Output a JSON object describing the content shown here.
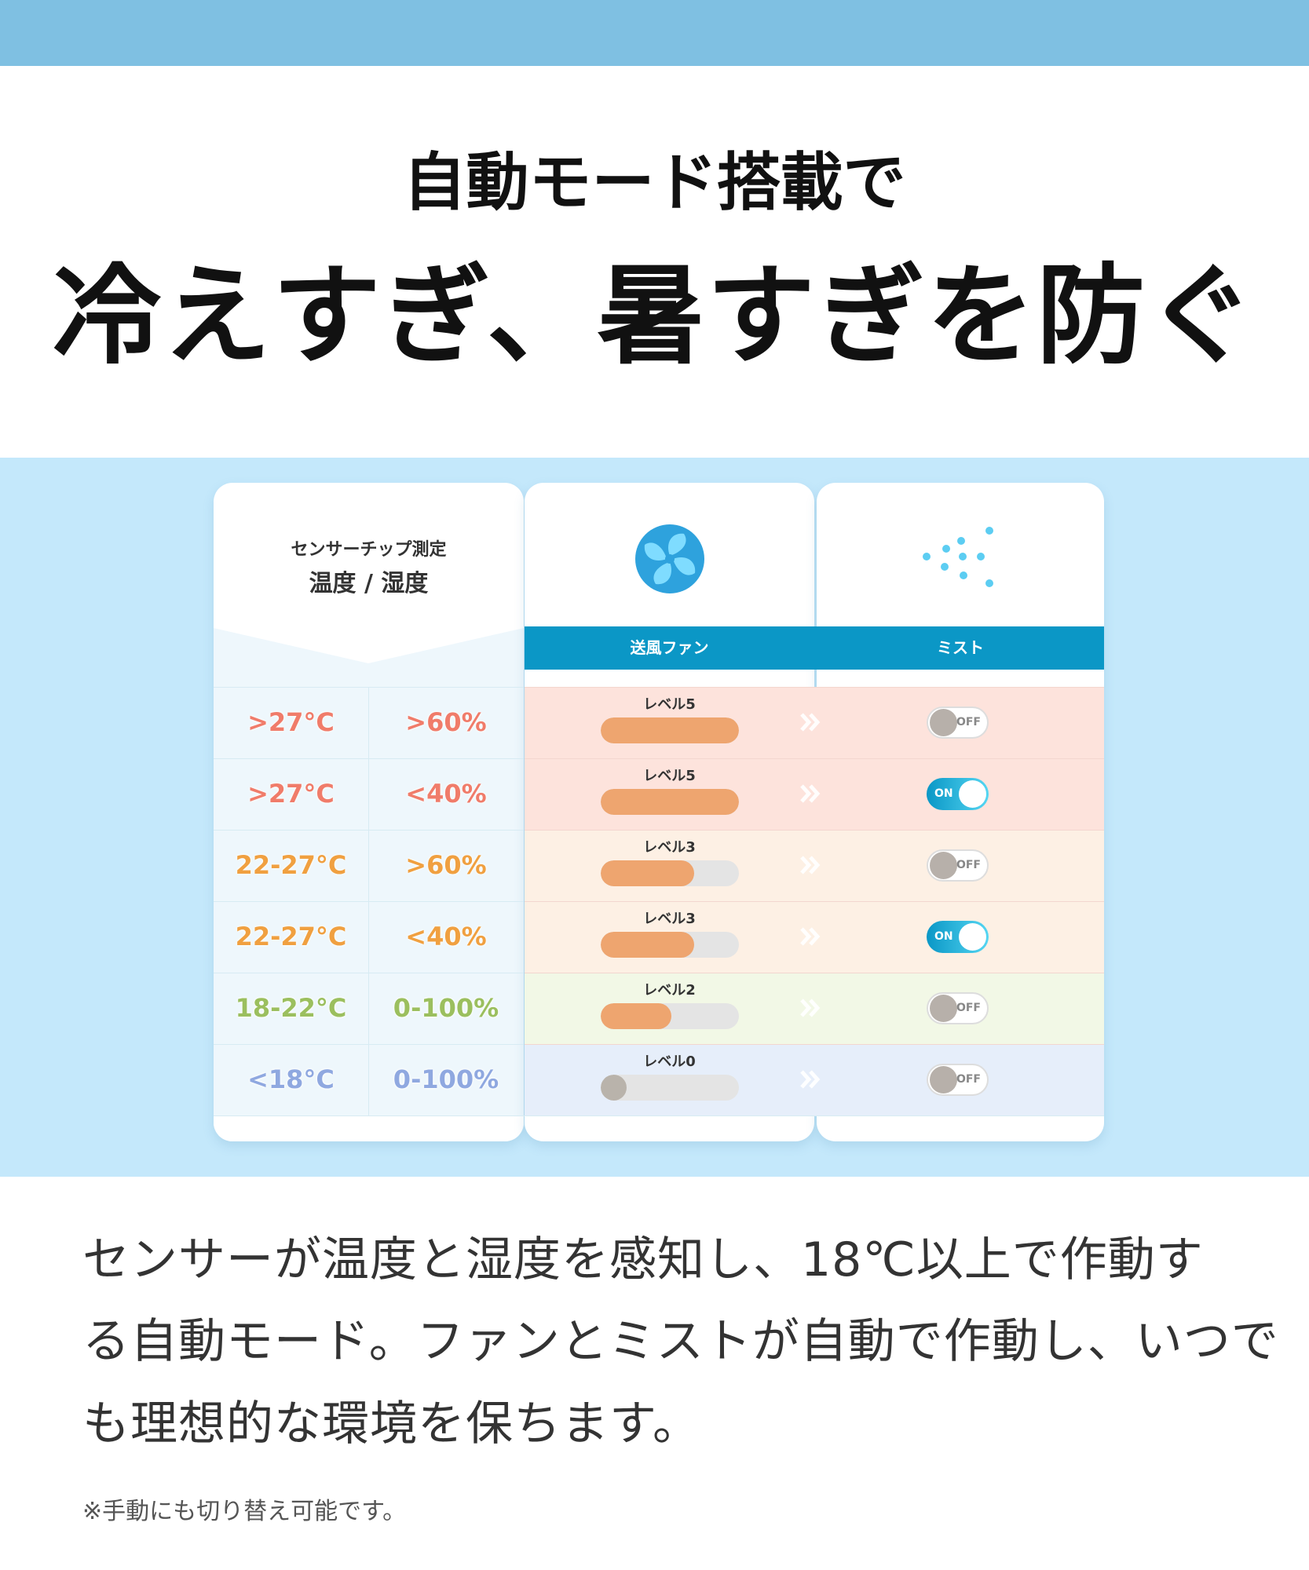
{
  "header": {
    "line1": "自動モード搭載で",
    "line2": "冷えすぎ、暑すぎを防ぐ"
  },
  "table": {
    "sensor_label": "センサーチップ測定",
    "sensor_title": "温度 / 湿度",
    "fan_header": "送風ファン",
    "mist_header": "ミスト",
    "rows": [
      {
        "temperature": ">27°C",
        "humidity": ">60%",
        "fan": {
          "label": "レベル5",
          "level": 5
        },
        "mist": {
          "label": "OFF",
          "on": false
        }
      },
      {
        "temperature": ">27°C",
        "humidity": "<40%",
        "fan": {
          "label": "レベル5",
          "level": 5
        },
        "mist": {
          "label": "ON",
          "on": true
        }
      },
      {
        "temperature": "22-27°C",
        "humidity": ">60%",
        "fan": {
          "label": "レベル3",
          "level": 3
        },
        "mist": {
          "label": "OFF",
          "on": false
        }
      },
      {
        "temperature": "22-27°C",
        "humidity": "<40%",
        "fan": {
          "label": "レベル3",
          "level": 3
        },
        "mist": {
          "label": "ON",
          "on": true
        }
      },
      {
        "temperature": "18-22°C",
        "humidity": "0-100%",
        "fan": {
          "label": "レベル2",
          "level": 2
        },
        "mist": {
          "label": "OFF",
          "on": false
        }
      },
      {
        "temperature": "<18°C",
        "humidity": "0-100%",
        "fan": {
          "label": "レベル0",
          "level": 0
        },
        "mist": {
          "label": "OFF",
          "on": false
        }
      }
    ]
  },
  "description": {
    "lines": [
      "センサーが温度と湿度を感知し、18℃以上で作動す",
      "る自動モード。ファンとミストが自動で作動し、いつで",
      "も理想的な環境を保ちます。"
    ]
  },
  "note": "※手動にも切り替え可能です。"
}
